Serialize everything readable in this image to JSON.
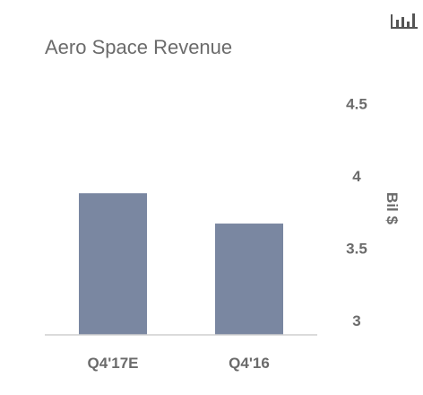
{
  "chart_data": {
    "type": "bar",
    "title": "Aero Space Revenue",
    "categories": [
      "Q4'17E",
      "Q4'16"
    ],
    "values": [
      3.88,
      3.67
    ],
    "xlabel": "",
    "ylabel": "Bil $",
    "ylim": [
      2.9,
      4.5
    ],
    "yticks": [
      "3",
      "3.5",
      "4",
      "4.5"
    ],
    "grid": false,
    "y_axis_side": "right",
    "bar_color": "#7a87a1"
  },
  "toolbar": {
    "chart_type_icon": "bar-chart-icon"
  }
}
